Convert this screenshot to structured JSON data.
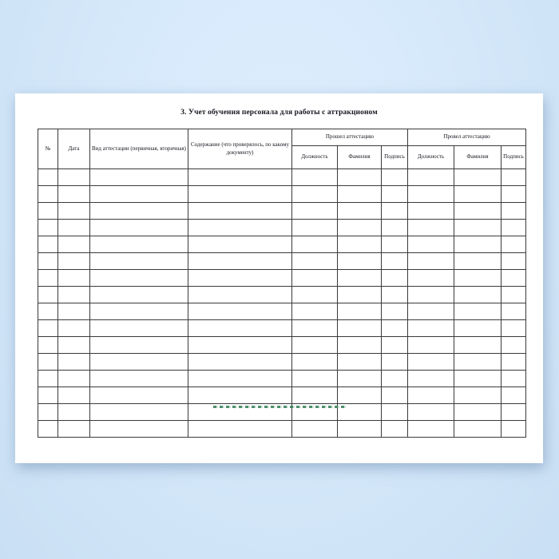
{
  "background": {
    "center_color": "#deeefd",
    "edge_color": "#c9dff3"
  },
  "page": {
    "color": "#ffffff"
  },
  "document": {
    "title": "3. Учет обучения персонала для работы с аттракционом"
  },
  "table": {
    "border_color": "#3a3a3a",
    "columns": [
      {
        "label": "№"
      },
      {
        "label": "Дата"
      },
      {
        "label": "Вид аттестации (первичная, вторичная)"
      },
      {
        "label": "Содержание (что проверялось, по какому документу)"
      }
    ],
    "groups": [
      {
        "label": "Прошел аттестацию",
        "subcolumns": [
          "Должность",
          "Фамилия",
          "Подпись"
        ]
      },
      {
        "label": "Провел аттестацию",
        "subcolumns": [
          "Должность",
          "Фамилия",
          "Подпись"
        ]
      }
    ],
    "empty_rows": 16,
    "cells_per_row": 10
  },
  "watermark": {
    "color": "#2e7d52",
    "style": "green-dashed-line"
  }
}
